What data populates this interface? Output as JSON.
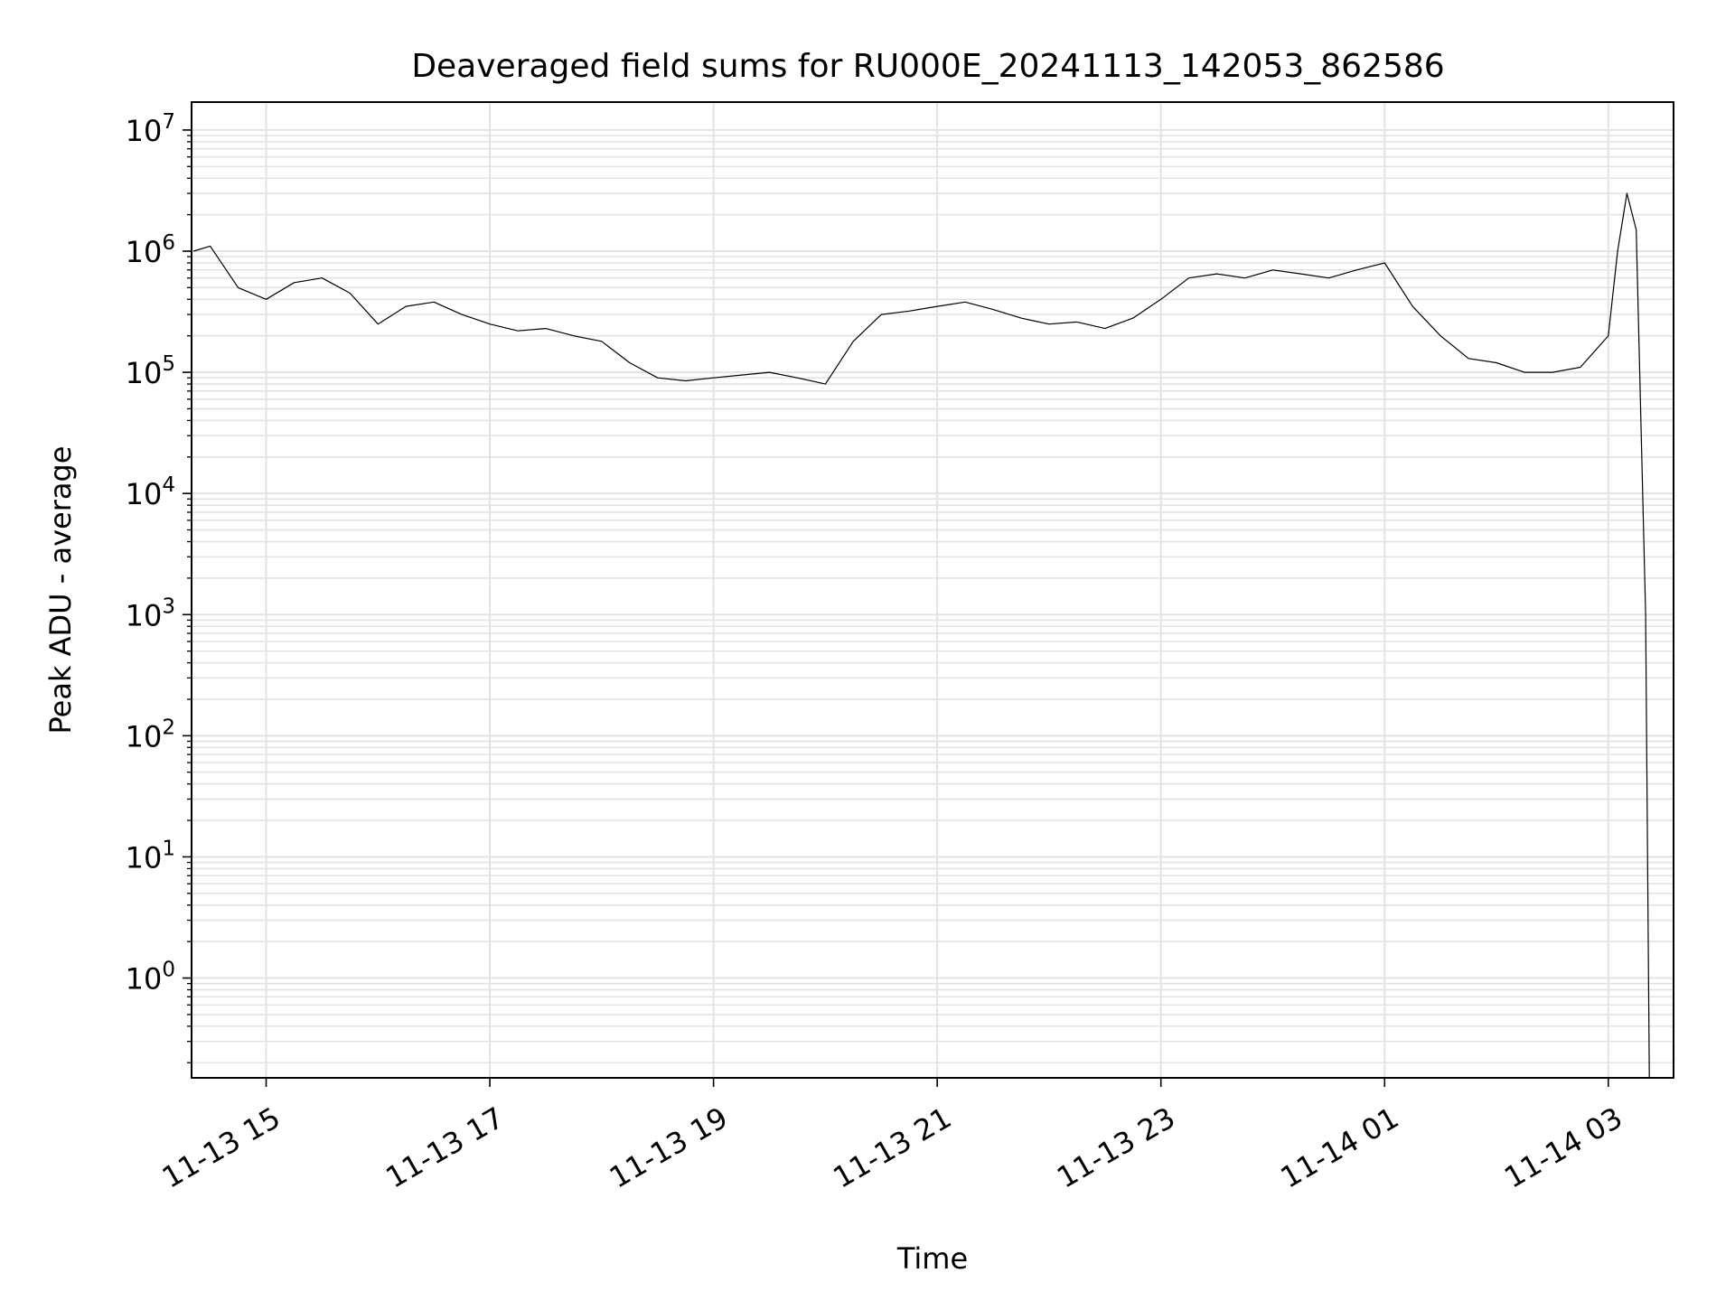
{
  "chart_data": {
    "type": "line",
    "title": "Deaveraged field sums for RU000E_20241113_142053_862586",
    "xlabel": "Time",
    "ylabel": "Peak ADU - average",
    "y_scale": "log",
    "ylim": [
      0.15,
      17000000
    ],
    "xlim": [
      "2024-11-13 14:20",
      "2024-11-14 03:35"
    ],
    "grid": true,
    "legend": "none",
    "colors": {
      "line": "#000000",
      "grid": "#e3e3e3",
      "axes": "#000000"
    },
    "x_ticks": [
      {
        "label": "11-13 15",
        "value": "2024-11-13 15:00"
      },
      {
        "label": "11-13 17",
        "value": "2024-11-13 17:00"
      },
      {
        "label": "11-13 19",
        "value": "2024-11-13 19:00"
      },
      {
        "label": "11-13 21",
        "value": "2024-11-13 21:00"
      },
      {
        "label": "11-13 23",
        "value": "2024-11-13 23:00"
      },
      {
        "label": "11-14 01",
        "value": "2024-11-14 01:00"
      },
      {
        "label": "11-14 03",
        "value": "2024-11-14 03:00"
      }
    ],
    "y_ticks": [
      {
        "base": "10",
        "exp": "0",
        "value": 1
      },
      {
        "base": "10",
        "exp": "1",
        "value": 10
      },
      {
        "base": "10",
        "exp": "2",
        "value": 100
      },
      {
        "base": "10",
        "exp": "3",
        "value": 1000
      },
      {
        "base": "10",
        "exp": "4",
        "value": 10000
      },
      {
        "base": "10",
        "exp": "5",
        "value": 100000
      },
      {
        "base": "10",
        "exp": "6",
        "value": 1000000
      },
      {
        "base": "10",
        "exp": "7",
        "value": 10000000
      }
    ],
    "series": [
      {
        "x": [
          "2024-11-13 14:21",
          "2024-11-13 14:30",
          "2024-11-13 14:45",
          "2024-11-13 15:00",
          "2024-11-13 15:15",
          "2024-11-13 15:30",
          "2024-11-13 15:45",
          "2024-11-13 16:00",
          "2024-11-13 16:15",
          "2024-11-13 16:30",
          "2024-11-13 16:45",
          "2024-11-13 17:00",
          "2024-11-13 17:15",
          "2024-11-13 17:30",
          "2024-11-13 17:45",
          "2024-11-13 18:00",
          "2024-11-13 18:15",
          "2024-11-13 18:30",
          "2024-11-13 18:45",
          "2024-11-13 19:00",
          "2024-11-13 19:15",
          "2024-11-13 19:30",
          "2024-11-13 19:45",
          "2024-11-13 20:00",
          "2024-11-13 20:15",
          "2024-11-13 20:30",
          "2024-11-13 20:45",
          "2024-11-13 21:00",
          "2024-11-13 21:15",
          "2024-11-13 21:30",
          "2024-11-13 21:45",
          "2024-11-13 22:00",
          "2024-11-13 22:15",
          "2024-11-13 22:30",
          "2024-11-13 22:45",
          "2024-11-13 23:00",
          "2024-11-13 23:15",
          "2024-11-13 23:30",
          "2024-11-13 23:45",
          "2024-11-14 00:00",
          "2024-11-14 00:15",
          "2024-11-14 00:30",
          "2024-11-14 00:45",
          "2024-11-14 01:00",
          "2024-11-14 01:15",
          "2024-11-14 01:30",
          "2024-11-14 01:45",
          "2024-11-14 02:00",
          "2024-11-14 02:15",
          "2024-11-14 02:30",
          "2024-11-14 02:45",
          "2024-11-14 03:00",
          "2024-11-14 03:05",
          "2024-11-14 03:10",
          "2024-11-14 03:15",
          "2024-11-14 03:20",
          "2024-11-14 03:22"
        ],
        "y": [
          1000000,
          1100000,
          500000,
          400000,
          550000,
          600000,
          450000,
          250000,
          350000,
          380000,
          300000,
          250000,
          220000,
          230000,
          200000,
          180000,
          120000,
          90000,
          85000,
          90000,
          95000,
          100000,
          90000,
          80000,
          180000,
          300000,
          320000,
          350000,
          380000,
          330000,
          280000,
          250000,
          260000,
          230000,
          280000,
          400000,
          600000,
          650000,
          600000,
          700000,
          650000,
          600000,
          700000,
          800000,
          350000,
          200000,
          130000,
          120000,
          100000,
          100000,
          110000,
          200000,
          1000000,
          3000000,
          1500000,
          1000,
          0.15
        ]
      }
    ]
  }
}
